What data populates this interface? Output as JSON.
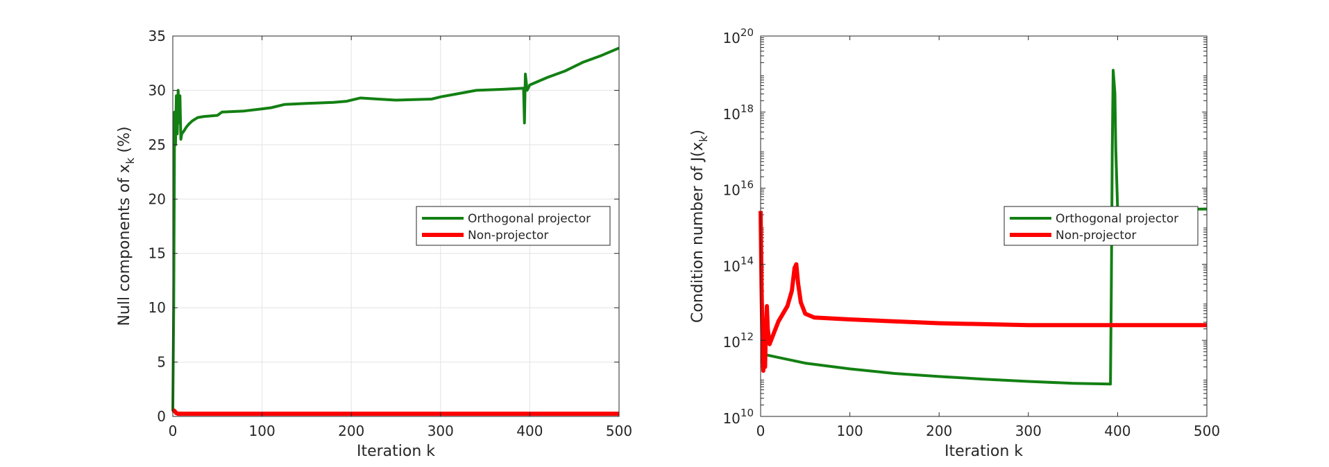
{
  "chart_data": [
    {
      "type": "line",
      "xlabel": "Iteration k",
      "ylabel": "Null components of x",
      "ylabel_sub": "k",
      "ylabel_suffix": " (%)",
      "xlim": [
        0,
        500
      ],
      "ylim": [
        0,
        35
      ],
      "xticks": [
        0,
        100,
        200,
        300,
        400,
        500
      ],
      "yticks": [
        0,
        5,
        10,
        15,
        20,
        25,
        30,
        35
      ],
      "grid": true,
      "legend_position": "center-right",
      "series": [
        {
          "name": "Orthogonal projector",
          "color": "#138013",
          "points": [
            [
              0,
              0.5
            ],
            [
              1,
              10
            ],
            [
              2,
              28
            ],
            [
              3,
              25
            ],
            [
              4,
              29.5
            ],
            [
              5,
              26
            ],
            [
              6,
              30
            ],
            [
              7,
              27
            ],
            [
              8,
              29.5
            ],
            [
              9,
              25.5
            ],
            [
              10,
              26
            ],
            [
              12,
              26.2
            ],
            [
              15,
              26.6
            ],
            [
              18,
              26.9
            ],
            [
              22,
              27.2
            ],
            [
              28,
              27.5
            ],
            [
              35,
              27.6
            ],
            [
              50,
              27.7
            ],
            [
              55,
              28
            ],
            [
              80,
              28.1
            ],
            [
              100,
              28.3
            ],
            [
              110,
              28.4
            ],
            [
              125,
              28.7
            ],
            [
              150,
              28.8
            ],
            [
              180,
              28.9
            ],
            [
              195,
              29.0
            ],
            [
              210,
              29.3
            ],
            [
              230,
              29.2
            ],
            [
              250,
              29.1
            ],
            [
              290,
              29.2
            ],
            [
              300,
              29.4
            ],
            [
              320,
              29.7
            ],
            [
              340,
              30.0
            ],
            [
              370,
              30.1
            ],
            [
              393,
              30.2
            ],
            [
              394,
              27
            ],
            [
              395,
              31.5
            ],
            [
              397,
              30
            ],
            [
              400,
              30.5
            ],
            [
              420,
              31.2
            ],
            [
              440,
              31.8
            ],
            [
              460,
              32.6
            ],
            [
              480,
              33.2
            ],
            [
              500,
              33.9
            ]
          ]
        },
        {
          "name": "Non-projector",
          "color": "#ff0000",
          "points": [
            [
              0,
              0.6
            ],
            [
              2,
              0.5
            ],
            [
              4,
              0.3
            ],
            [
              6,
              0.25
            ],
            [
              500,
              0.25
            ]
          ]
        }
      ]
    },
    {
      "type": "line",
      "xlabel": "Iteration k",
      "ylabel": "Condition number of J(x",
      "ylabel_sub": "k",
      "ylabel_suffix": ")",
      "xlim": [
        0,
        500
      ],
      "ylim_exponent": [
        10,
        20
      ],
      "y_scale": "log",
      "xticks": [
        0,
        100,
        200,
        300,
        400,
        500
      ],
      "yticks_exponent": [
        10,
        12,
        14,
        16,
        18,
        20
      ],
      "ytick_base": "10",
      "grid": false,
      "legend_position": "top-right",
      "series": [
        {
          "name": "Orthogonal projector",
          "color": "#138013",
          "log10_points": [
            [
              0,
              11.65
            ],
            [
              20,
              11.55
            ],
            [
              50,
              11.4
            ],
            [
              100,
              11.25
            ],
            [
              150,
              11.13
            ],
            [
              200,
              11.05
            ],
            [
              250,
              10.98
            ],
            [
              300,
              10.92
            ],
            [
              350,
              10.87
            ],
            [
              392,
              10.85
            ],
            [
              393,
              13.5
            ],
            [
              394,
              17
            ],
            [
              395,
              19.1
            ],
            [
              397,
              18.5
            ],
            [
              398,
              17
            ],
            [
              400,
              15.45
            ],
            [
              450,
              15.45
            ],
            [
              500,
              15.45
            ]
          ]
        },
        {
          "name": "Non-projector",
          "color": "#ff0000",
          "log10_points": [
            [
              0,
              15.4
            ],
            [
              1,
              13.5
            ],
            [
              2,
              12
            ],
            [
              3,
              11.2
            ],
            [
              4,
              12
            ],
            [
              5,
              11.3
            ],
            [
              6,
              12.4
            ],
            [
              7,
              12.9
            ],
            [
              8,
              12.3
            ],
            [
              10,
              11.9
            ],
            [
              15,
              12.2
            ],
            [
              20,
              12.5
            ],
            [
              30,
              12.9
            ],
            [
              35,
              13.3
            ],
            [
              38,
              13.9
            ],
            [
              40,
              14.0
            ],
            [
              42,
              13.5
            ],
            [
              45,
              13.0
            ],
            [
              50,
              12.7
            ],
            [
              60,
              12.6
            ],
            [
              100,
              12.55
            ],
            [
              200,
              12.45
            ],
            [
              300,
              12.4
            ],
            [
              400,
              12.4
            ],
            [
              500,
              12.4
            ]
          ]
        }
      ]
    }
  ]
}
